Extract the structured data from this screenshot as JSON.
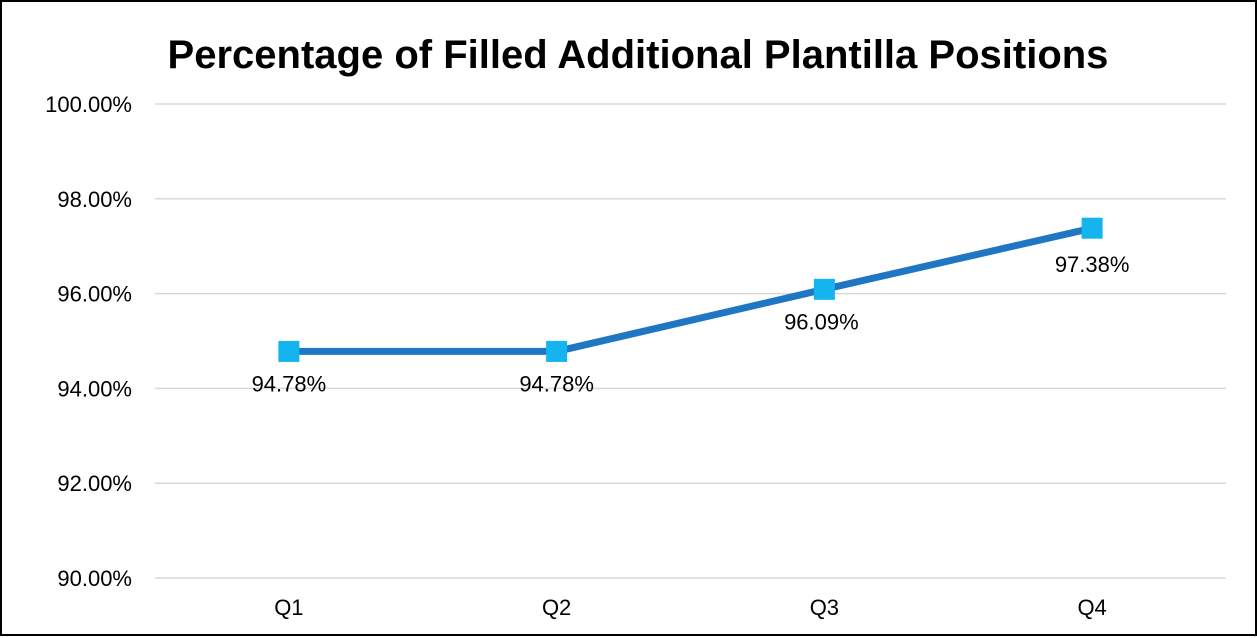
{
  "chart_data": {
    "type": "line",
    "title": "Percentage of Filled Additional Plantilla Positions",
    "categories": [
      "Q1",
      "Q2",
      "Q3",
      "Q4"
    ],
    "series": [
      {
        "values": [
          94.78,
          94.78,
          96.09,
          97.38
        ],
        "data_labels": [
          "94.78%",
          "94.78%",
          "96.09%",
          "97.38%"
        ],
        "line_color": "#1F77C4",
        "marker_color": "#14B4EE",
        "marker": "square"
      }
    ],
    "ylim": [
      90,
      100
    ],
    "y_ticks": [
      90,
      92,
      94,
      96,
      98,
      100
    ],
    "y_tick_labels": [
      "90.00%",
      "92.00%",
      "94.00%",
      "96.00%",
      "98.00%",
      "100.00%"
    ],
    "grid": true,
    "legend": "none"
  }
}
